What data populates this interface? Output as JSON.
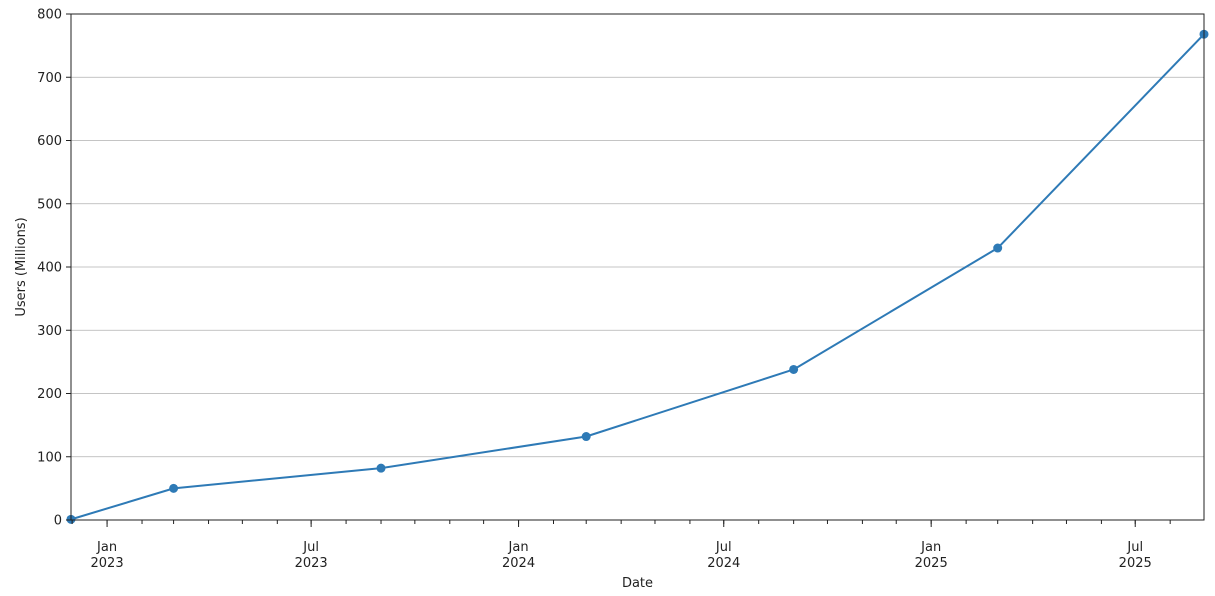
{
  "chart_data": {
    "type": "line",
    "title": "",
    "xlabel": "Date",
    "ylabel": "Users (Millions)",
    "ylim": [
      0,
      800
    ],
    "xlim": [
      "2022-11-30",
      "2025-08-31"
    ],
    "grid": "horizontal",
    "y_ticks": [
      0,
      100,
      200,
      300,
      400,
      500,
      600,
      700,
      800
    ],
    "x_ticks": [
      {
        "date": "2023-01-01",
        "line1": "Jan",
        "line2": "2023"
      },
      {
        "date": "2023-07-01",
        "line1": "Jul",
        "line2": "2023"
      },
      {
        "date": "2024-01-01",
        "line1": "Jan",
        "line2": "2024"
      },
      {
        "date": "2024-07-01",
        "line1": "Jul",
        "line2": "2024"
      },
      {
        "date": "2025-01-01",
        "line1": "Jan",
        "line2": "2025"
      },
      {
        "date": "2025-07-01",
        "line1": "Jul",
        "line2": "2025"
      }
    ],
    "series": [
      {
        "color": "#2e7ab6",
        "points": [
          {
            "x": "2022-11-30",
            "y": 1
          },
          {
            "x": "2023-03-01",
            "y": 50
          },
          {
            "x": "2023-09-01",
            "y": 82
          },
          {
            "x": "2024-03-01",
            "y": 132
          },
          {
            "x": "2024-09-01",
            "y": 238
          },
          {
            "x": "2025-03-01",
            "y": 430
          },
          {
            "x": "2025-08-31",
            "y": 768
          }
        ]
      }
    ]
  }
}
